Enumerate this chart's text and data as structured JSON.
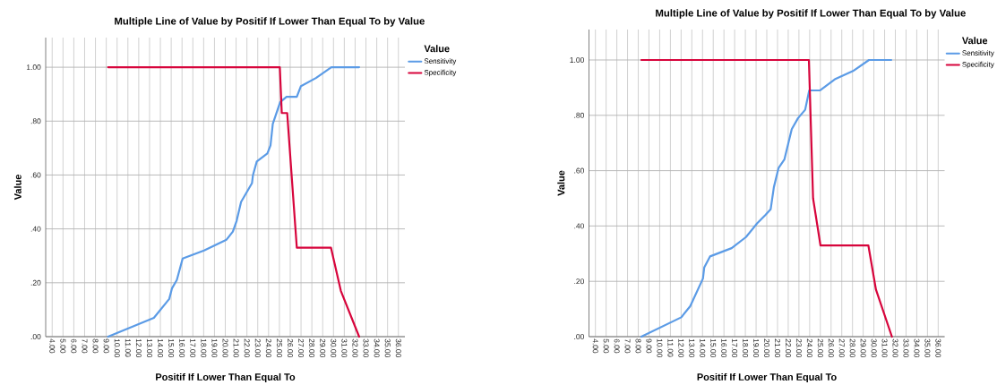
{
  "chart_data": [
    {
      "type": "line",
      "title": "Multiple Line of Value by Positif If Lower Than Equal To by Value",
      "xlabel": "Positif If Lower Than Equal To",
      "ylabel": "Value",
      "legend_title": "Value",
      "legend": "right",
      "grid": true,
      "line_style": "solid",
      "xlim": [
        3.4,
        36.6
      ],
      "ylim": [
        0,
        1.11
      ],
      "xticks": [
        {
          "value": 4,
          "label": "4.00"
        },
        {
          "value": 5,
          "label": "5.00"
        },
        {
          "value": 6,
          "label": "6.00"
        },
        {
          "value": 7,
          "label": "7.00"
        },
        {
          "value": 8,
          "label": "8.00"
        },
        {
          "value": 9,
          "label": "9.00"
        },
        {
          "value": 10,
          "label": "10.00"
        },
        {
          "value": 11,
          "label": "11.00"
        },
        {
          "value": 12,
          "label": "12.00"
        },
        {
          "value": 13,
          "label": "13.00"
        },
        {
          "value": 14,
          "label": "14.00"
        },
        {
          "value": 15,
          "label": "15.00"
        },
        {
          "value": 16,
          "label": "16.00"
        },
        {
          "value": 17,
          "label": "17.00"
        },
        {
          "value": 18,
          "label": "18.00"
        },
        {
          "value": 19,
          "label": "19.00"
        },
        {
          "value": 20,
          "label": "20.00"
        },
        {
          "value": 21,
          "label": "21.00"
        },
        {
          "value": 22,
          "label": "22.00"
        },
        {
          "value": 23,
          "label": "23.00"
        },
        {
          "value": 24,
          "label": "24.00"
        },
        {
          "value": 25,
          "label": "25.00"
        },
        {
          "value": 26,
          "label": "26.00"
        },
        {
          "value": 27,
          "label": "27.00"
        },
        {
          "value": 28,
          "label": "28.00"
        },
        {
          "value": 29,
          "label": "29.00"
        },
        {
          "value": 30,
          "label": "30.00"
        },
        {
          "value": 31,
          "label": "31.00"
        },
        {
          "value": 32,
          "label": "32.00"
        },
        {
          "value": 33,
          "label": "33.00"
        },
        {
          "value": 34,
          "label": "34.00"
        },
        {
          "value": 35,
          "label": "35.00"
        },
        {
          "value": 36,
          "label": "36.00"
        }
      ],
      "yticks": [
        {
          "value": 0,
          "label": ".00"
        },
        {
          "value": 0.2,
          "label": ".20"
        },
        {
          "value": 0.4,
          "label": ".40"
        },
        {
          "value": 0.6,
          "label": ".60"
        },
        {
          "value": 0.8,
          "label": ".80"
        },
        {
          "value": 1,
          "label": "1.00"
        }
      ],
      "series": [
        {
          "name": "Sensitivity",
          "color": "#5b9be6",
          "x": [
            9.17,
            13.4,
            14.82,
            15.08,
            15.52,
            16.06,
            18.04,
            20.11,
            20.7,
            21.05,
            21.46,
            22.47,
            22.56,
            22.91,
            23.89,
            24.18,
            24.39,
            25.07,
            25.66,
            26.61,
            26.99,
            28.38,
            29.8,
            32.37
          ],
          "values": [
            0,
            0.07,
            0.14,
            0.18,
            0.21,
            0.29,
            0.32,
            0.36,
            0.39,
            0.43,
            0.5,
            0.57,
            0.6,
            0.65,
            0.68,
            0.71,
            0.79,
            0.87,
            0.89,
            0.89,
            0.93,
            0.96,
            1.0,
            1.0
          ]
        },
        {
          "name": "Specificity",
          "color": "#d7053c",
          "x": [
            9.17,
            25.04,
            25.22,
            25.72,
            26.61,
            29.77,
            30.68,
            32.37
          ],
          "values": [
            1,
            1,
            0.83,
            0.83,
            0.33,
            0.33,
            0.17,
            0
          ]
        }
      ]
    },
    {
      "type": "line",
      "title": "Multiple Line of Value by Positif If Lower Than Equal To by Value",
      "xlabel": "Positif If Lower Than Equal To",
      "ylabel": "Value",
      "legend_title": "Value",
      "legend": "right",
      "grid": true,
      "line_style": "solid",
      "xlim": [
        3.4,
        36.6
      ],
      "ylim": [
        0,
        1.11
      ],
      "xticks": [
        {
          "value": 4,
          "label": "4.00"
        },
        {
          "value": 5,
          "label": "5.00"
        },
        {
          "value": 6,
          "label": "6.00"
        },
        {
          "value": 7,
          "label": "7.00"
        },
        {
          "value": 8,
          "label": "8.00"
        },
        {
          "value": 9,
          "label": "9.00"
        },
        {
          "value": 10,
          "label": "10.00"
        },
        {
          "value": 11,
          "label": "11.00"
        },
        {
          "value": 12,
          "label": "12.00"
        },
        {
          "value": 13,
          "label": "13.00"
        },
        {
          "value": 14,
          "label": "14.00"
        },
        {
          "value": 15,
          "label": "15.00"
        },
        {
          "value": 16,
          "label": "16.00"
        },
        {
          "value": 17,
          "label": "17.00"
        },
        {
          "value": 18,
          "label": "18.00"
        },
        {
          "value": 19,
          "label": "19.00"
        },
        {
          "value": 20,
          "label": "20.00"
        },
        {
          "value": 21,
          "label": "21.00"
        },
        {
          "value": 22,
          "label": "22.00"
        },
        {
          "value": 23,
          "label": "23.00"
        },
        {
          "value": 24,
          "label": "24.00"
        },
        {
          "value": 25,
          "label": "25.00"
        },
        {
          "value": 26,
          "label": "26.00"
        },
        {
          "value": 27,
          "label": "27.00"
        },
        {
          "value": 28,
          "label": "28.00"
        },
        {
          "value": 29,
          "label": "29.00"
        },
        {
          "value": 30,
          "label": "30.00"
        },
        {
          "value": 31,
          "label": "31.00"
        },
        {
          "value": 32,
          "label": "32.00"
        },
        {
          "value": 33,
          "label": "33.00"
        },
        {
          "value": 34,
          "label": "34.00"
        },
        {
          "value": 35,
          "label": "35.00"
        },
        {
          "value": 36,
          "label": "36.00"
        }
      ],
      "yticks": [
        {
          "value": 0,
          "label": ".00"
        },
        {
          "value": 0.2,
          "label": ".20"
        },
        {
          "value": 0.4,
          "label": ".40"
        },
        {
          "value": 0.6,
          "label": ".60"
        },
        {
          "value": 0.8,
          "label": ".80"
        },
        {
          "value": 1,
          "label": "1.00"
        }
      ],
      "series": [
        {
          "name": "Sensitivity",
          "color": "#5b9be6",
          "x": [
            8.29,
            12.02,
            12.85,
            14.04,
            14.16,
            14.7,
            16.72,
            18.06,
            19.11,
            19.88,
            20.36,
            20.66,
            21.1,
            21.64,
            22.33,
            22.92,
            23.58,
            23.96,
            24.98,
            26.35,
            28.05,
            29.54,
            31.62
          ],
          "values": [
            0,
            0.07,
            0.11,
            0.21,
            0.25,
            0.29,
            0.32,
            0.36,
            0.41,
            0.44,
            0.46,
            0.54,
            0.61,
            0.64,
            0.75,
            0.79,
            0.82,
            0.89,
            0.89,
            0.93,
            0.96,
            1.0,
            1.0
          ]
        },
        {
          "name": "Specificity",
          "color": "#d7053c",
          "x": [
            8.29,
            23.93,
            24.32,
            25.01,
            29.48,
            30.19,
            31.68
          ],
          "values": [
            1,
            1,
            0.5,
            0.33,
            0.33,
            0.17,
            0
          ]
        }
      ]
    }
  ]
}
